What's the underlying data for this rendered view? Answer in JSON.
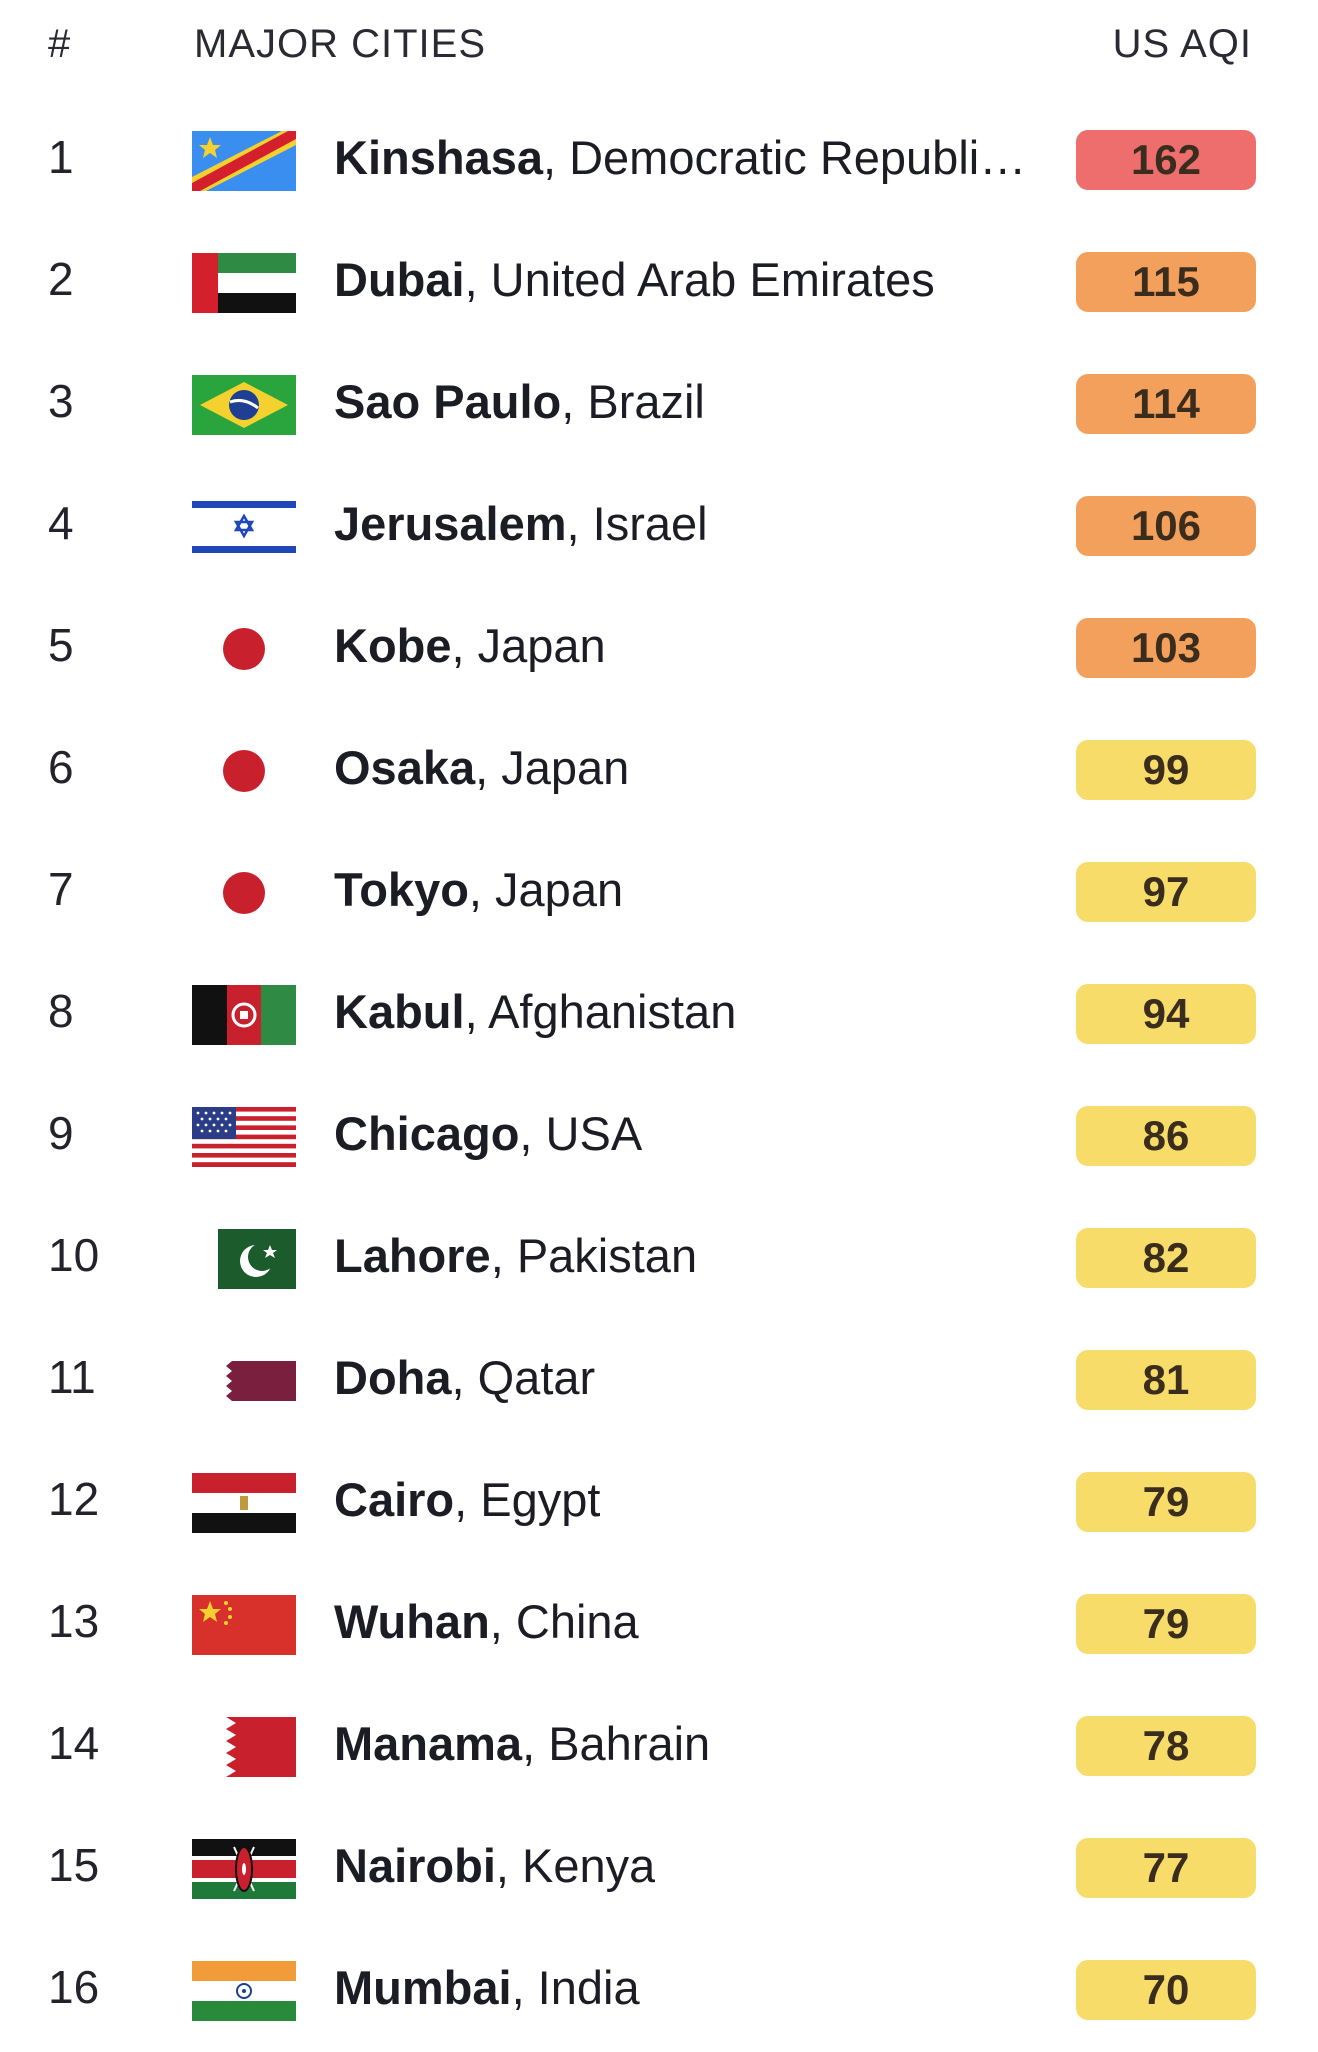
{
  "header": {
    "rank_label": "#",
    "city_label": "MAJOR CITIES",
    "aqi_label": "US AQI"
  },
  "colors": {
    "unhealthy": "#ee6e6e",
    "sensitive": "#f3a05c",
    "moderate": "#f7dc6a"
  },
  "rows": [
    {
      "rank": "1",
      "city": "Kinshasa",
      "country": ", Democratic Republi…",
      "aqi": "162",
      "level": "unhealthy",
      "flag": "congo-dr-flag-icon"
    },
    {
      "rank": "2",
      "city": "Dubai",
      "country": ", United Arab Emirates",
      "aqi": "115",
      "level": "sensitive",
      "flag": "uae-flag-icon"
    },
    {
      "rank": "3",
      "city": "Sao Paulo",
      "country": ", Brazil",
      "aqi": "114",
      "level": "sensitive",
      "flag": "brazil-flag-icon"
    },
    {
      "rank": "4",
      "city": "Jerusalem",
      "country": ", Israel",
      "aqi": "106",
      "level": "sensitive",
      "flag": "israel-flag-icon"
    },
    {
      "rank": "5",
      "city": "Kobe",
      "country": ", Japan",
      "aqi": "103",
      "level": "sensitive",
      "flag": "japan-flag-icon"
    },
    {
      "rank": "6",
      "city": "Osaka",
      "country": ", Japan",
      "aqi": "99",
      "level": "moderate",
      "flag": "japan-flag-icon"
    },
    {
      "rank": "7",
      "city": "Tokyo",
      "country": ", Japan",
      "aqi": "97",
      "level": "moderate",
      "flag": "japan-flag-icon"
    },
    {
      "rank": "8",
      "city": "Kabul",
      "country": ", Afghanistan",
      "aqi": "94",
      "level": "moderate",
      "flag": "afghanistan-flag-icon"
    },
    {
      "rank": "9",
      "city": "Chicago",
      "country": ", USA",
      "aqi": "86",
      "level": "moderate",
      "flag": "usa-flag-icon"
    },
    {
      "rank": "10",
      "city": "Lahore",
      "country": ", Pakistan",
      "aqi": "82",
      "level": "moderate",
      "flag": "pakistan-flag-icon"
    },
    {
      "rank": "11",
      "city": "Doha",
      "country": ", Qatar",
      "aqi": "81",
      "level": "moderate",
      "flag": "qatar-flag-icon"
    },
    {
      "rank": "12",
      "city": "Cairo",
      "country": ", Egypt",
      "aqi": "79",
      "level": "moderate",
      "flag": "egypt-flag-icon"
    },
    {
      "rank": "13",
      "city": "Wuhan",
      "country": ", China",
      "aqi": "79",
      "level": "moderate",
      "flag": "china-flag-icon"
    },
    {
      "rank": "14",
      "city": "Manama",
      "country": ", Bahrain",
      "aqi": "78",
      "level": "moderate",
      "flag": "bahrain-flag-icon"
    },
    {
      "rank": "15",
      "city": "Nairobi",
      "country": ", Kenya",
      "aqi": "77",
      "level": "moderate",
      "flag": "kenya-flag-icon"
    },
    {
      "rank": "16",
      "city": "Mumbai",
      "country": ", India",
      "aqi": "70",
      "level": "moderate",
      "flag": "india-flag-icon"
    }
  ]
}
